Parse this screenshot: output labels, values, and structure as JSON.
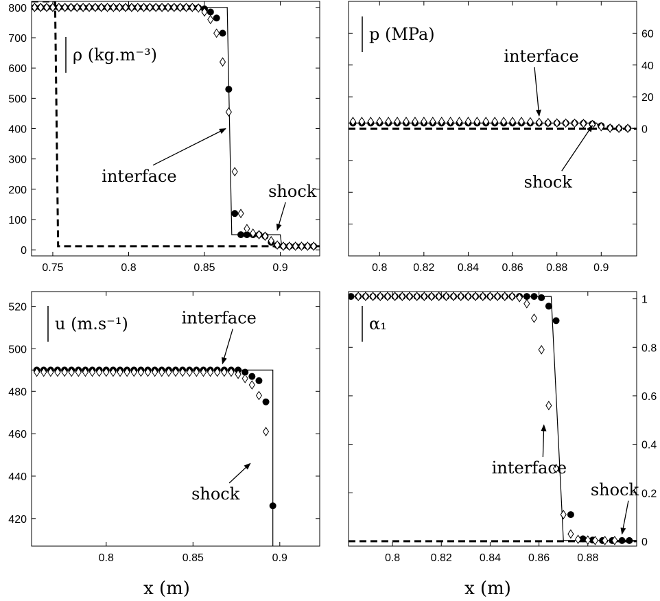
{
  "chart_data": [
    {
      "id": "density",
      "type": "line",
      "title": "",
      "panel_label": "ρ (kg.m⁻³)",
      "xlabel": "",
      "ylabel": "",
      "xlim": [
        0.736,
        0.926
      ],
      "ylim": [
        -20,
        820
      ],
      "y_axis_side": "left",
      "xticks": [
        0.75,
        0.8,
        0.85,
        0.9
      ],
      "xtick_labels": [
        "0.75",
        "0.8",
        "0.85",
        "0.9"
      ],
      "yticks": [
        0,
        100,
        200,
        300,
        400,
        500,
        600,
        700,
        800
      ],
      "ytick_labels": [
        "0",
        "100",
        "200",
        "300",
        "400",
        "500",
        "600",
        "700",
        "800"
      ],
      "series": [
        {
          "style": "dashed",
          "x": [
            0.736,
            0.7515,
            0.7535,
            0.926
          ],
          "y": [
            820,
            820,
            12,
            12
          ]
        },
        {
          "style": "solid",
          "x": [
            0.736,
            0.865,
            0.868,
            0.87,
            0.9,
            0.901,
            0.926
          ],
          "y": [
            800,
            800,
            50,
            50,
            50,
            12,
            12
          ]
        },
        {
          "style": "filled-circle",
          "x": [
            0.738,
            0.742,
            0.746,
            0.75,
            0.754,
            0.758,
            0.762,
            0.766,
            0.77,
            0.774,
            0.778,
            0.782,
            0.786,
            0.79,
            0.794,
            0.798,
            0.802,
            0.806,
            0.81,
            0.814,
            0.818,
            0.822,
            0.826,
            0.83,
            0.834,
            0.838,
            0.842,
            0.846,
            0.85,
            0.854,
            0.858,
            0.862,
            0.866,
            0.87,
            0.874,
            0.878,
            0.882,
            0.886,
            0.89,
            0.894,
            0.898,
            0.902,
            0.906,
            0.91,
            0.914,
            0.918,
            0.922
          ],
          "y": [
            800,
            800,
            800,
            800,
            800,
            800,
            800,
            800,
            800,
            800,
            800,
            800,
            800,
            800,
            800,
            800,
            800,
            800,
            800,
            800,
            800,
            800,
            800,
            800,
            800,
            800,
            800,
            799,
            795,
            785,
            765,
            715,
            530,
            120,
            50,
            50,
            50,
            50,
            45,
            25,
            15,
            12,
            12,
            12,
            12,
            12,
            12
          ]
        },
        {
          "style": "open-diamond",
          "x": [
            0.738,
            0.742,
            0.746,
            0.75,
            0.754,
            0.758,
            0.762,
            0.766,
            0.77,
            0.774,
            0.778,
            0.782,
            0.786,
            0.79,
            0.794,
            0.798,
            0.802,
            0.806,
            0.81,
            0.814,
            0.818,
            0.822,
            0.826,
            0.83,
            0.834,
            0.838,
            0.842,
            0.846,
            0.85,
            0.854,
            0.858,
            0.862,
            0.866,
            0.87,
            0.874,
            0.878,
            0.882,
            0.886,
            0.89,
            0.894,
            0.898,
            0.902,
            0.906,
            0.91,
            0.914,
            0.918,
            0.922
          ],
          "y": [
            800,
            800,
            800,
            800,
            800,
            800,
            800,
            800,
            800,
            800,
            800,
            800,
            800,
            800,
            800,
            800,
            800,
            800,
            800,
            800,
            800,
            800,
            800,
            800,
            800,
            800,
            800,
            798,
            785,
            760,
            715,
            620,
            455,
            258,
            120,
            70,
            55,
            50,
            45,
            30,
            16,
            12,
            12,
            12,
            12,
            12,
            12
          ]
        }
      ],
      "annotations": [
        {
          "text": "interface",
          "x": 0.807,
          "y": 225,
          "arrow_x": 0.864,
          "arrow_y": 400
        },
        {
          "text": "shock",
          "x": 0.908,
          "y": 175,
          "arrow_x": 0.898,
          "arrow_y": 65
        }
      ]
    },
    {
      "id": "pressure",
      "type": "line",
      "title": "",
      "panel_label": "p (MPa)",
      "xlabel": "",
      "ylabel": "",
      "xlim": [
        0.786,
        0.916
      ],
      "ylim": [
        -80,
        80
      ],
      "y_axis_side": "right",
      "xticks": [
        0.8,
        0.82,
        0.84,
        0.86,
        0.88,
        0.9
      ],
      "xtick_labels": [
        "0.8",
        "0.82",
        "0.84",
        "0.86",
        "0.88",
        "0.9"
      ],
      "yticks": [
        -60,
        -40,
        -20,
        0,
        20,
        40,
        60
      ],
      "ytick_labels": [
        "",
        "",
        "",
        "0",
        "20",
        "40",
        "60"
      ],
      "series": [
        {
          "style": "dashed",
          "x": [
            0.786,
            0.916
          ],
          "y": [
            0,
            0
          ]
        },
        {
          "style": "solid",
          "x": [
            0.786,
            0.898,
            0.899,
            0.916
          ],
          "y": [
            3.5,
            3.5,
            0.2,
            0.2
          ]
        },
        {
          "style": "filled-circle",
          "x": [
            0.788,
            0.792,
            0.796,
            0.8,
            0.804,
            0.808,
            0.812,
            0.816,
            0.82,
            0.824,
            0.828,
            0.832,
            0.836,
            0.84,
            0.844,
            0.848,
            0.852,
            0.856,
            0.86,
            0.864,
            0.868,
            0.872,
            0.876,
            0.88,
            0.884,
            0.888,
            0.892,
            0.896,
            0.9,
            0.904,
            0.908,
            0.912
          ],
          "y": [
            3.5,
            3.5,
            3.5,
            3.5,
            3.5,
            3.5,
            3.5,
            3.5,
            3.5,
            3.5,
            3.5,
            3.5,
            3.5,
            3.5,
            3.5,
            3.5,
            3.5,
            3.5,
            3.5,
            3.5,
            3.5,
            3.5,
            3.5,
            3.5,
            3.5,
            3.5,
            3.4,
            3.0,
            1.8,
            0.5,
            0.2,
            0.2
          ]
        },
        {
          "style": "open-diamond",
          "x": [
            0.788,
            0.792,
            0.796,
            0.8,
            0.804,
            0.808,
            0.812,
            0.816,
            0.82,
            0.824,
            0.828,
            0.832,
            0.836,
            0.84,
            0.844,
            0.848,
            0.852,
            0.856,
            0.86,
            0.864,
            0.868,
            0.872,
            0.876,
            0.88,
            0.884,
            0.888,
            0.892,
            0.896,
            0.9,
            0.904,
            0.908,
            0.912
          ],
          "y": [
            4.5,
            4.5,
            4.5,
            4.5,
            4.5,
            4.5,
            4.5,
            4.5,
            4.5,
            4.5,
            4.5,
            4.5,
            4.5,
            4.5,
            4.5,
            4.5,
            4.5,
            4.5,
            4.5,
            4.5,
            4.3,
            4.0,
            3.8,
            3.6,
            3.5,
            3.4,
            3.2,
            2.6,
            1.2,
            0.3,
            0.2,
            0.2
          ]
        }
      ],
      "annotations": [
        {
          "text": "interface",
          "x": 0.873,
          "y": 42,
          "arrow_x": 0.872,
          "arrow_y": 8
        },
        {
          "text": "shock",
          "x": 0.876,
          "y": -37,
          "arrow_x": 0.896,
          "arrow_y": 2
        }
      ]
    },
    {
      "id": "velocity",
      "type": "line",
      "title": "",
      "panel_label": "u (m.s⁻¹)",
      "xlabel": "x (m)",
      "ylabel": "",
      "xlim": [
        0.757,
        0.923
      ],
      "ylim": [
        407,
        527
      ],
      "y_axis_side": "left",
      "xticks": [
        0.8,
        0.85,
        0.9
      ],
      "xtick_labels": [
        "0.8",
        "0.85",
        "0.9"
      ],
      "yticks": [
        420,
        440,
        460,
        480,
        500,
        520
      ],
      "ytick_labels": [
        "420",
        "440",
        "460",
        "480",
        "500",
        "520"
      ],
      "series": [
        {
          "style": "solid",
          "x": [
            0.757,
            0.894,
            0.896,
            0.896
          ],
          "y": [
            490,
            490,
            490,
            407
          ]
        },
        {
          "style": "filled-circle",
          "x": [
            0.76,
            0.764,
            0.768,
            0.772,
            0.776,
            0.78,
            0.784,
            0.788,
            0.792,
            0.796,
            0.8,
            0.804,
            0.808,
            0.812,
            0.816,
            0.82,
            0.824,
            0.828,
            0.832,
            0.836,
            0.84,
            0.844,
            0.848,
            0.852,
            0.856,
            0.86,
            0.864,
            0.868,
            0.872,
            0.876,
            0.88,
            0.884,
            0.888,
            0.892,
            0.896
          ],
          "y": [
            490,
            490,
            490,
            490,
            490,
            490,
            490,
            490,
            490,
            490,
            490,
            490,
            490,
            490,
            490,
            490,
            490,
            490,
            490,
            490,
            490,
            490,
            490,
            490,
            490,
            490,
            490,
            490,
            490,
            490,
            489,
            487,
            485,
            475,
            426
          ]
        },
        {
          "style": "open-diamond",
          "x": [
            0.76,
            0.764,
            0.768,
            0.772,
            0.776,
            0.78,
            0.784,
            0.788,
            0.792,
            0.796,
            0.8,
            0.804,
            0.808,
            0.812,
            0.816,
            0.82,
            0.824,
            0.828,
            0.832,
            0.836,
            0.84,
            0.844,
            0.848,
            0.852,
            0.856,
            0.86,
            0.864,
            0.868,
            0.872,
            0.876,
            0.88,
            0.884,
            0.888,
            0.892
          ],
          "y": [
            489,
            489,
            489,
            489,
            489,
            489,
            489,
            489,
            489,
            489,
            489,
            489,
            489,
            489,
            489,
            489,
            489,
            489,
            489,
            489,
            489,
            489,
            489,
            489,
            489,
            489,
            489,
            489,
            489,
            488,
            486,
            483,
            478,
            461
          ]
        }
      ],
      "annotations": [
        {
          "text": "interface",
          "x": 0.865,
          "y": 512,
          "arrow_x": 0.867,
          "arrow_y": 493
        },
        {
          "text": "shock",
          "x": 0.863,
          "y": 429,
          "arrow_x": 0.883,
          "arrow_y": 446
        }
      ]
    },
    {
      "id": "volume-fraction",
      "type": "line",
      "title": "",
      "panel_label": "α₁",
      "xlabel": "x (m)",
      "ylabel": "",
      "xlim": [
        0.782,
        0.9
      ],
      "ylim": [
        -0.02,
        1.03
      ],
      "y_axis_side": "right",
      "xticks": [
        0.8,
        0.82,
        0.84,
        0.86,
        0.88
      ],
      "xtick_labels": [
        "0.8",
        "0.82",
        "0.84",
        "0.86",
        "0.88"
      ],
      "yticks": [
        0,
        0.2,
        0.4,
        0.6,
        0.8,
        1
      ],
      "ytick_labels": [
        "0",
        "0.2",
        "0.4",
        "0.6",
        "0.8",
        "1"
      ],
      "series": [
        {
          "style": "dashed",
          "x": [
            0.782,
            0.9
          ],
          "y": [
            0.0,
            0.0
          ]
        },
        {
          "style": "solid",
          "x": [
            0.782,
            0.865,
            0.87,
            0.9
          ],
          "y": [
            1.01,
            1.01,
            0.003,
            0.003
          ]
        },
        {
          "style": "filled-circle",
          "x": [
            0.783,
            0.786,
            0.789,
            0.792,
            0.795,
            0.798,
            0.801,
            0.804,
            0.807,
            0.81,
            0.813,
            0.816,
            0.819,
            0.822,
            0.825,
            0.828,
            0.831,
            0.834,
            0.837,
            0.84,
            0.843,
            0.846,
            0.849,
            0.852,
            0.855,
            0.858,
            0.861,
            0.864,
            0.867,
            0.873,
            0.878,
            0.882,
            0.886,
            0.89,
            0.894,
            0.897
          ],
          "y": [
            1.01,
            1.01,
            1.01,
            1.01,
            1.01,
            1.01,
            1.01,
            1.01,
            1.01,
            1.01,
            1.01,
            1.01,
            1.01,
            1.01,
            1.01,
            1.01,
            1.01,
            1.01,
            1.01,
            1.01,
            1.01,
            1.01,
            1.01,
            1.01,
            1.01,
            1.01,
            1.005,
            0.97,
            0.91,
            0.11,
            0.01,
            0.005,
            0.003,
            0.003,
            0.003,
            0.003
          ]
        },
        {
          "style": "open-diamond",
          "x": [
            0.786,
            0.789,
            0.792,
            0.795,
            0.798,
            0.801,
            0.804,
            0.807,
            0.81,
            0.813,
            0.816,
            0.819,
            0.822,
            0.825,
            0.828,
            0.831,
            0.834,
            0.837,
            0.84,
            0.843,
            0.846,
            0.849,
            0.852,
            0.855,
            0.858,
            0.861,
            0.864,
            0.867,
            0.87,
            0.873,
            0.876,
            0.88,
            0.883,
            0.887,
            0.891
          ],
          "y": [
            1.01,
            1.01,
            1.01,
            1.01,
            1.01,
            1.01,
            1.01,
            1.01,
            1.01,
            1.01,
            1.01,
            1.01,
            1.01,
            1.01,
            1.01,
            1.01,
            1.01,
            1.01,
            1.01,
            1.01,
            1.01,
            1.01,
            1.005,
            0.98,
            0.92,
            0.79,
            0.56,
            0.3,
            0.11,
            0.03,
            0.008,
            0.005,
            0.003,
            0.003,
            0.003
          ]
        }
      ],
      "annotations": [
        {
          "text": "interface",
          "x": 0.856,
          "y": 0.28,
          "arrow_x": 0.862,
          "arrow_y": 0.48
        },
        {
          "text": "shock",
          "x": 0.891,
          "y": 0.19,
          "arrow_x": 0.894,
          "arrow_y": 0.03
        }
      ]
    }
  ]
}
